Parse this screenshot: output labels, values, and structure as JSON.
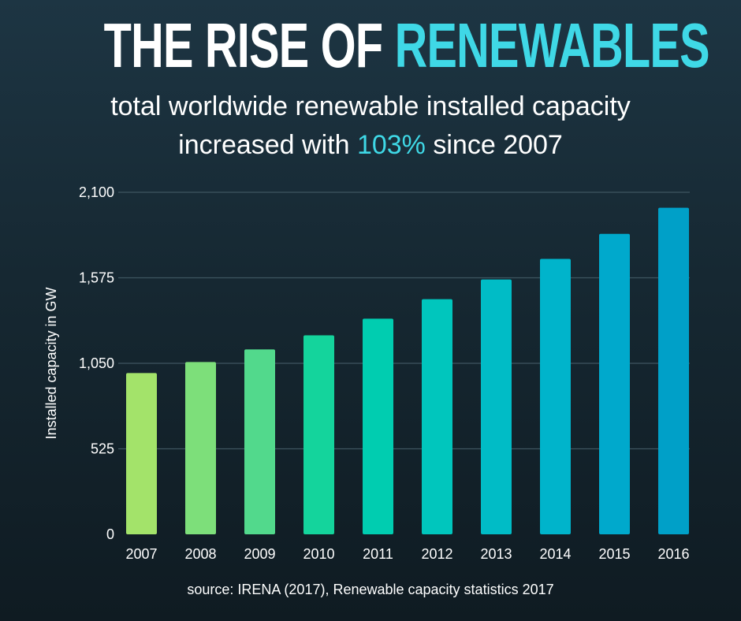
{
  "header": {
    "title_part1": "THE RISE OF",
    "title_part2": "RENEWABLES",
    "subtitle_line1": "total worldwide renewable installed capacity",
    "subtitle_line2_prefix": "increased with",
    "subtitle_highlight": "103%",
    "subtitle_line2_suffix": "since 2007"
  },
  "colors": {
    "accent": "#3fd8e6",
    "background_top": "#1d3543",
    "background_bottom": "#0f1b22",
    "bars": [
      "#a3e36a",
      "#7ddf7a",
      "#52d98c",
      "#14d49c",
      "#00cdb0",
      "#00c6bd",
      "#00bcc6",
      "#00b4cb",
      "#00a9cc",
      "#00a0c8"
    ]
  },
  "chart_data": {
    "type": "bar",
    "categories": [
      "2007",
      "2008",
      "2009",
      "2010",
      "2011",
      "2012",
      "2013",
      "2014",
      "2015",
      "2016"
    ],
    "values": [
      990,
      1058,
      1135,
      1222,
      1324,
      1444,
      1565,
      1691,
      1845,
      2005
    ],
    "title": "",
    "xlabel": "",
    "ylabel": "Installed capacity in GW",
    "ylim": [
      0,
      2100
    ],
    "yticks": [
      "0",
      "525",
      "1,050",
      "1,575",
      "2,100"
    ],
    "ytick_values": [
      0,
      525,
      1050,
      1575,
      2100
    ],
    "grid": true
  },
  "footer": {
    "source": "source:  IRENA (2017), Renewable capacity statistics 2017"
  }
}
